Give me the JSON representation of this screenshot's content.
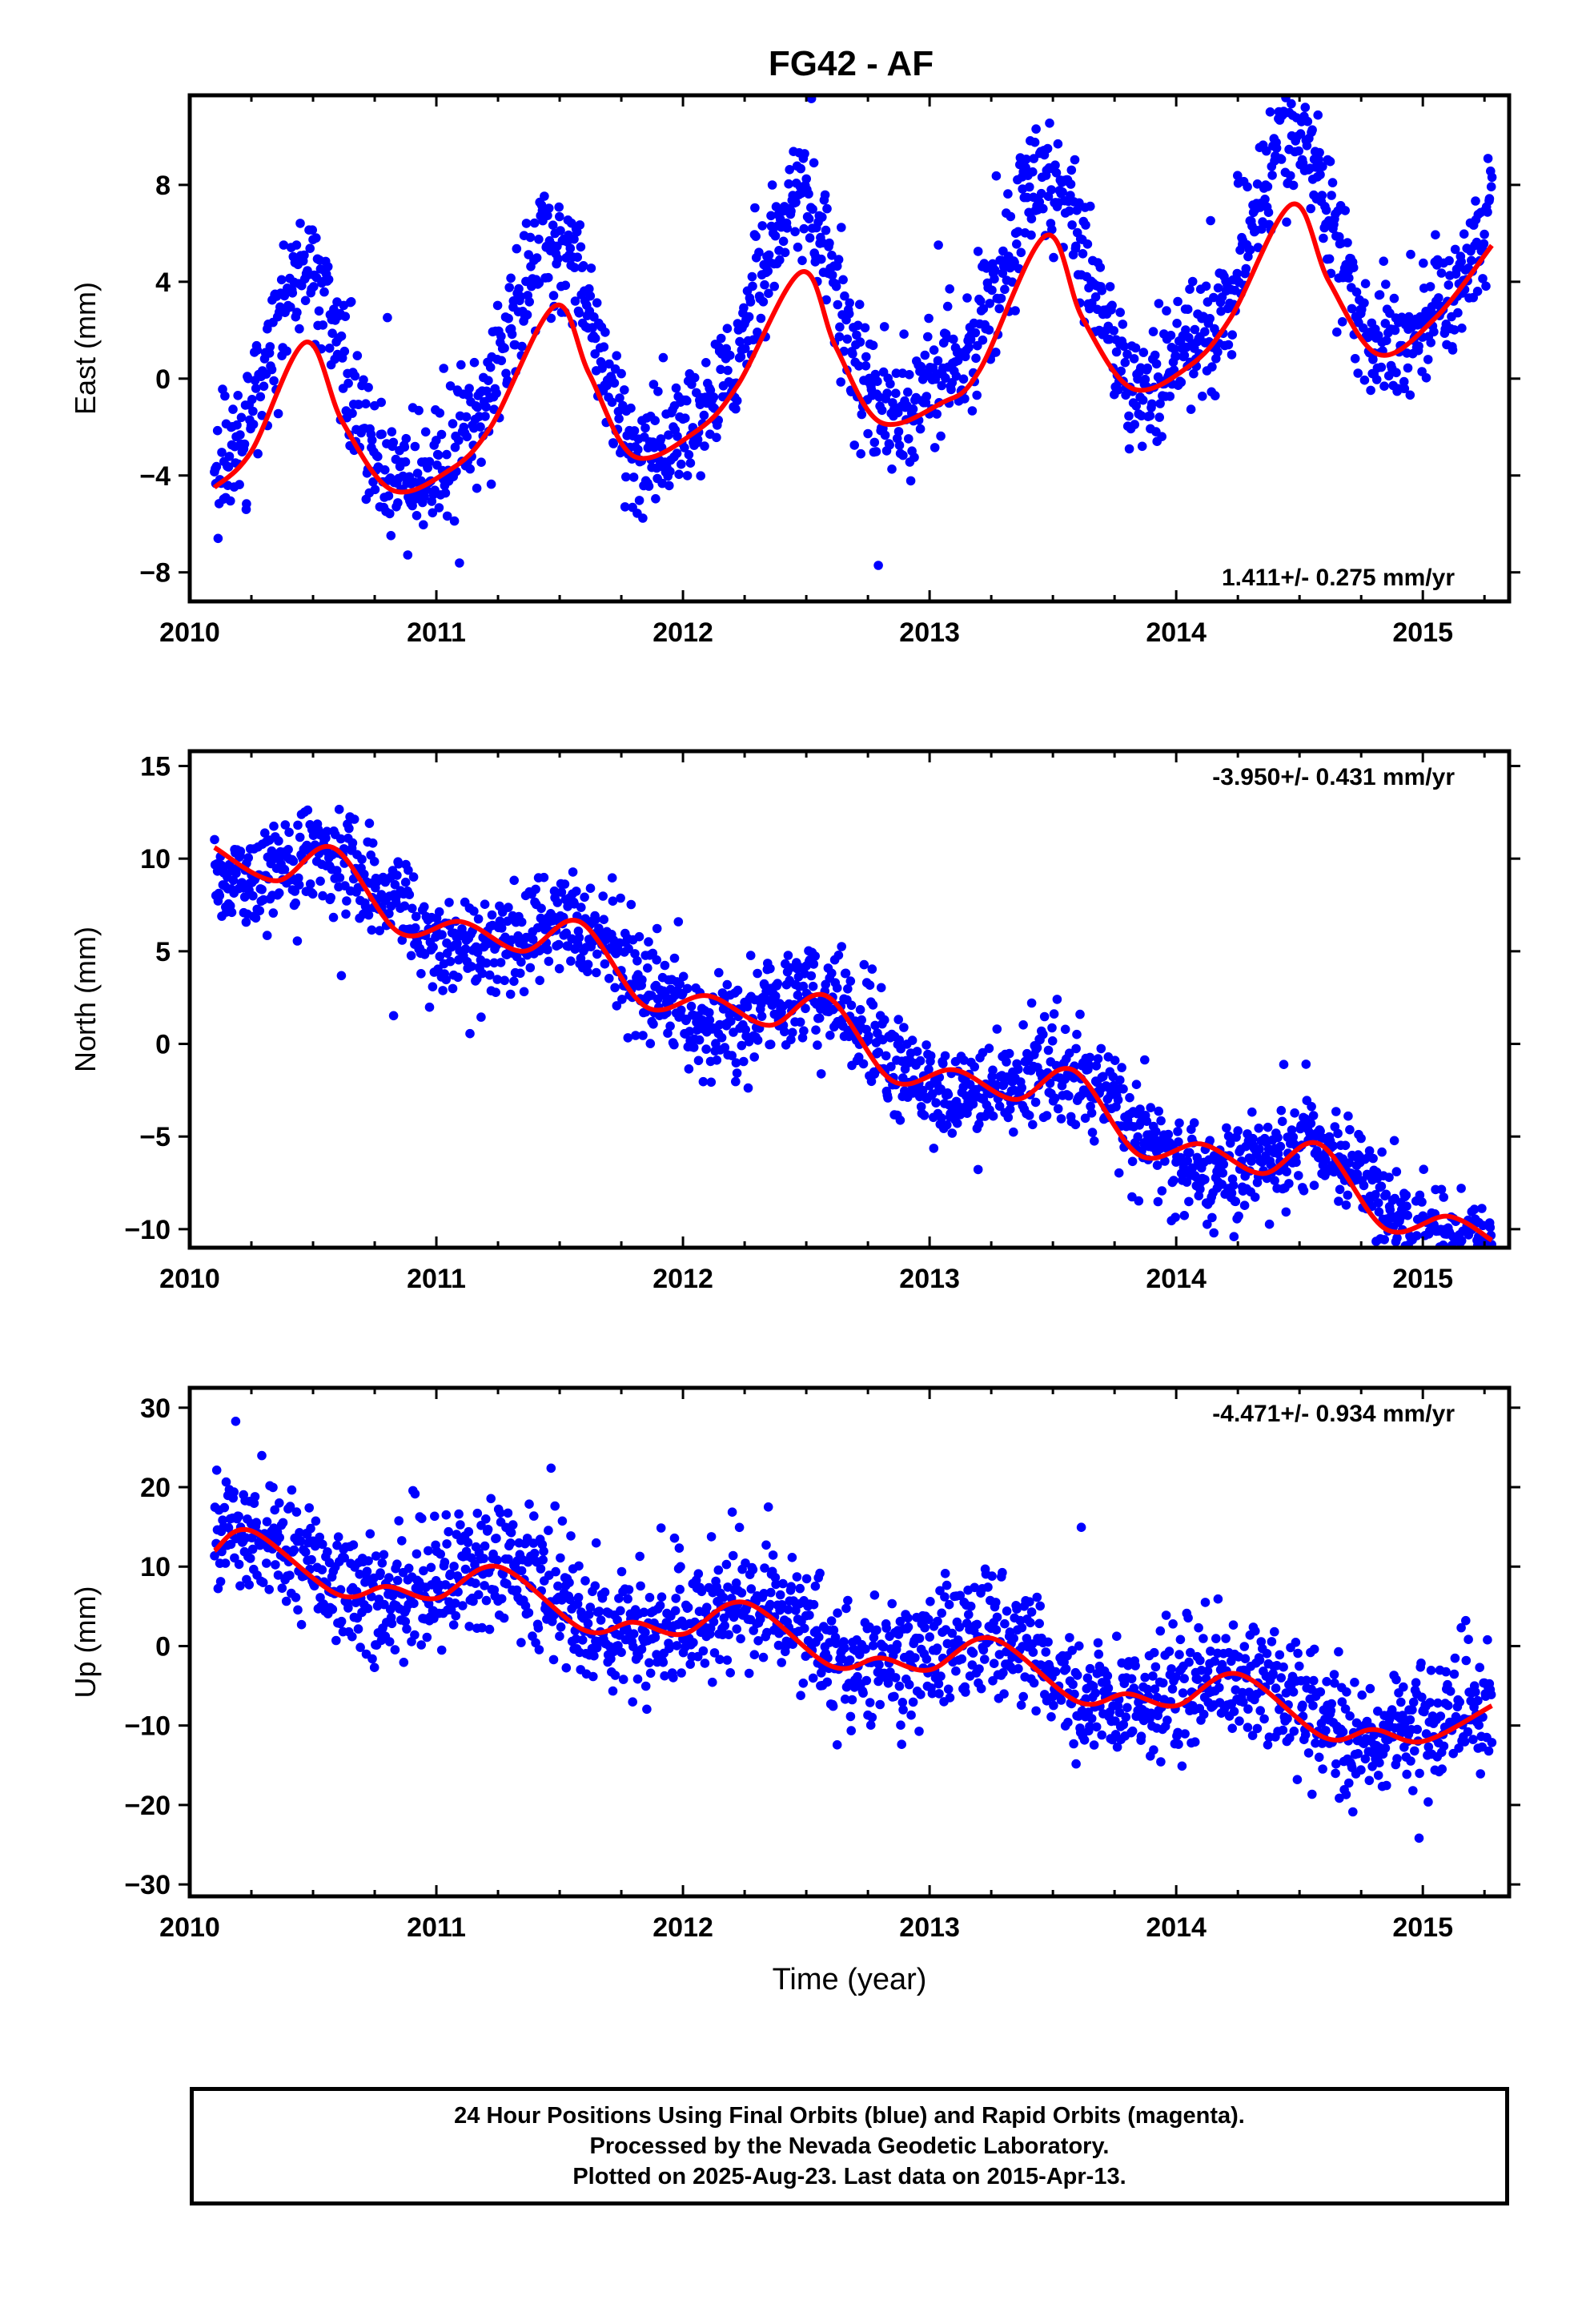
{
  "title": "FG42 - AF",
  "colors": {
    "points": "#0000ff",
    "model": "#ff0000",
    "axes": "#000000"
  },
  "chart_data": [
    {
      "type": "scatter",
      "panel": "east",
      "title": "FG42 - AF",
      "ylabel": "East (mm)",
      "xlabel": "",
      "xlim": [
        2010.0,
        2015.35
      ],
      "ylim": [
        -9.2,
        11.7
      ],
      "xticks": [
        2010,
        2011,
        2012,
        2013,
        2014,
        2015
      ],
      "yticks": [
        -8,
        -4,
        0,
        4,
        8
      ],
      "rate_label": "1.411+/- 0.275 mm/yr",
      "rate_label_position": "bottom-right",
      "series": [
        {
          "role": "daily-positions",
          "color": "#0000ff",
          "marker": "dot",
          "model": {
            "start": 2010.1,
            "end": 2015.28,
            "offset": -1.6,
            "trend": 1.411,
            "seasonal": [
              {
                "period": 1.0,
                "amplitude": 4.4,
                "phase_year": 2010.45
              },
              {
                "period": 0.5,
                "amplitude": 1.1,
                "phase_year": 2010.5
              }
            ],
            "scatter_sd": 1.3,
            "point_count": 1700
          }
        },
        {
          "role": "model-fit",
          "color": "#ff0000",
          "x": [
            2010.1,
            2010.25,
            2010.47,
            2010.62,
            2010.82,
            2011.05,
            2011.22,
            2011.48,
            2011.62,
            2011.8,
            2012.05,
            2012.22,
            2012.48,
            2012.62,
            2012.8,
            2013.05,
            2013.2,
            2013.47,
            2013.62,
            2013.82,
            2014.05,
            2014.22,
            2014.47,
            2014.62,
            2014.82,
            2015.05,
            2015.28
          ],
          "y": [
            -4.5,
            -3.0,
            1.5,
            -1.8,
            -4.6,
            -3.8,
            -2.0,
            3.0,
            0.2,
            -3.2,
            -2.2,
            -0.3,
            4.4,
            1.3,
            -1.8,
            -1.0,
            0.3,
            5.9,
            2.5,
            -0.4,
            0.5,
            2.5,
            7.2,
            4.0,
            1.0,
            2.5,
            5.5
          ]
        }
      ]
    },
    {
      "type": "scatter",
      "panel": "north",
      "ylabel": "North (mm)",
      "xlabel": "",
      "xlim": [
        2010.0,
        2015.35
      ],
      "ylim": [
        -11,
        15.8
      ],
      "xticks": [
        2010,
        2011,
        2012,
        2013,
        2014,
        2015
      ],
      "yticks": [
        -10,
        -5,
        0,
        5,
        10,
        15
      ],
      "rate_label": "-3.950+/- 0.431 mm/yr",
      "rate_label_position": "top-right",
      "series": [
        {
          "role": "daily-positions",
          "color": "#0000ff",
          "marker": "dot",
          "model": {
            "start": 2010.1,
            "end": 2015.28,
            "offset": 10.5,
            "trend": -3.95,
            "seasonal": [
              {
                "period": 1.0,
                "amplitude": 1.6,
                "phase_year": 2010.58
              }
            ],
            "scatter_sd": 1.3,
            "point_count": 1700
          }
        },
        {
          "role": "model-fit",
          "color": "#ff0000",
          "x": [
            2010.1,
            2010.35,
            2010.58,
            2010.85,
            2011.1,
            2011.35,
            2011.58,
            2011.85,
            2012.1,
            2012.35,
            2012.58,
            2012.85,
            2013.1,
            2013.35,
            2013.58,
            2013.85,
            2014.1,
            2014.35,
            2014.58,
            2014.85,
            2015.1,
            2015.28
          ],
          "y": [
            10.6,
            8.8,
            10.6,
            6.0,
            6.6,
            5.0,
            6.6,
            2.0,
            2.6,
            1.0,
            2.6,
            -2.0,
            -1.4,
            -3.0,
            -1.4,
            -6.0,
            -5.4,
            -7.0,
            -5.4,
            -10.0,
            -9.3,
            -10.6
          ]
        }
      ]
    },
    {
      "type": "scatter",
      "panel": "up",
      "ylabel": "Up (mm)",
      "xlabel": "Time (year)",
      "xlim": [
        2010.0,
        2015.35
      ],
      "ylim": [
        -31.5,
        32.5
      ],
      "xticks": [
        2010,
        2011,
        2012,
        2013,
        2014,
        2015
      ],
      "yticks": [
        -30,
        -20,
        -10,
        0,
        10,
        20,
        30
      ],
      "rate_label": "-4.471+/- 0.934 mm/yr",
      "rate_label_position": "top-right",
      "series": [
        {
          "role": "daily-positions",
          "color": "#0000ff",
          "marker": "dot",
          "model": {
            "start": 2010.1,
            "end": 2015.28,
            "offset": 12.0,
            "trend": -4.471,
            "seasonal": [
              {
                "period": 1.0,
                "amplitude": 2.8,
                "phase_year": 2010.25
              }
            ],
            "scatter_sd": 4.0,
            "point_count": 1700
          }
        },
        {
          "role": "model-fit",
          "color": "#ff0000",
          "x": [
            2010.1,
            2010.25,
            2010.6,
            2010.8,
            2011.0,
            2011.25,
            2011.6,
            2011.8,
            2012.0,
            2012.25,
            2012.6,
            2012.8,
            2013.0,
            2013.25,
            2013.6,
            2013.8,
            2014.0,
            2014.25,
            2014.6,
            2014.8,
            2015.0,
            2015.28
          ],
          "y": [
            12.0,
            14.5,
            6.5,
            7.5,
            6.0,
            10.0,
            2.0,
            3.0,
            1.5,
            5.5,
            -2.5,
            -1.5,
            -3.0,
            1.0,
            -7.0,
            -6.0,
            -7.5,
            -3.5,
            -11.5,
            -10.5,
            -12.0,
            -7.5
          ]
        }
      ]
    }
  ],
  "footer": {
    "line1": "24 Hour Positions Using Final Orbits (blue) and Rapid Orbits (magenta).",
    "line2": "Processed by the Nevada Geodetic Laboratory.",
    "line3": "Plotted on 2025-Aug-23. Last data on 2015-Apr-13."
  }
}
